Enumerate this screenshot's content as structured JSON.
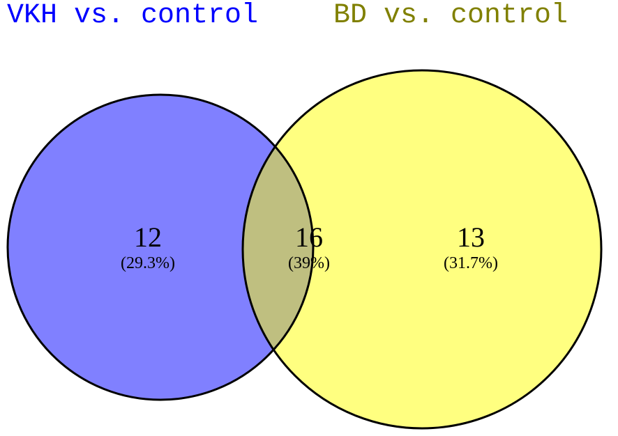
{
  "sets": [
    {
      "label": "VKH vs. control"
    },
    {
      "label": "BD vs. control"
    }
  ],
  "regions": [
    {
      "count": 12,
      "percent": "(29.3%)"
    },
    {
      "count": 16,
      "percent": "(39%)"
    },
    {
      "count": 13,
      "percent": "(31.7%)"
    }
  ]
}
